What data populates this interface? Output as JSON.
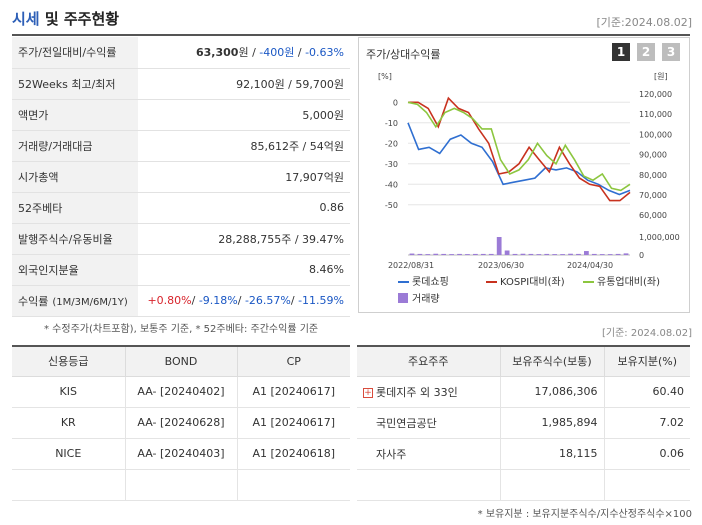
{
  "header": {
    "title_blue": "시세",
    "title_rest": " 및 주주현황",
    "date": "[기준:2024.08.02]"
  },
  "price_table": [
    {
      "key": "주가/전일대비/수익률",
      "parts": [
        {
          "t": "63,300",
          "cls": "bold"
        },
        {
          "t": "원 / ",
          "cls": ""
        },
        {
          "t": "-400원",
          "cls": "neg"
        },
        {
          "t": " / ",
          "cls": ""
        },
        {
          "t": "-0.63%",
          "cls": "neg"
        }
      ]
    },
    {
      "key": "52Weeks 최고/최저",
      "value": "92,100원 / 59,700원"
    },
    {
      "key": "액면가",
      "value": "5,000원"
    },
    {
      "key": "거래량/거래대금",
      "value": "85,612주 / 54억원"
    },
    {
      "key": "시가총액",
      "value": "17,907억원"
    },
    {
      "key": "52주베타",
      "value": "0.86"
    },
    {
      "key": "발행주식수/유동비율",
      "value": "28,288,755주 / 39.47%"
    },
    {
      "key": "외국인지분율",
      "value": "8.46%"
    },
    {
      "key": "수익률",
      "key_small": "(1M/3M/6M/1Y)",
      "parts": [
        {
          "t": "+0.80%",
          "cls": "pos"
        },
        {
          "t": "/ ",
          "cls": ""
        },
        {
          "t": "-9.18%",
          "cls": "neg"
        },
        {
          "t": "/ ",
          "cls": ""
        },
        {
          "t": "-26.57%",
          "cls": "neg"
        },
        {
          "t": "/ ",
          "cls": ""
        },
        {
          "t": "-11.59%",
          "cls": "neg"
        }
      ]
    }
  ],
  "chart_panel": {
    "title": "주가/상대수익률",
    "pages": [
      "1",
      "2",
      "3"
    ]
  },
  "chart_data": {
    "type": "line",
    "left_unit": "[%]",
    "right_unit": "[원]",
    "left_ticks": [
      0,
      -10,
      -20,
      -30,
      -40,
      -50
    ],
    "right_ticks": [
      "120,000",
      "110,000",
      "100,000",
      "90,000",
      "80,000",
      "70,000",
      "60,000"
    ],
    "volume_ticks": [
      "1,000,000",
      "0"
    ],
    "x_ticks": [
      "2022/08/31",
      "2023/06/30",
      "2024/04/30"
    ],
    "ylim": [
      -55,
      5
    ],
    "series": [
      {
        "name": "롯데쇼핑",
        "color": "#2f6fd1",
        "values": [
          -10,
          -23,
          -22,
          -25,
          -18,
          -16,
          -20,
          -22,
          -29,
          -40,
          -39,
          -38,
          -37,
          -32,
          -33,
          -32,
          -34,
          -38,
          -40,
          -43,
          -45,
          -43
        ]
      },
      {
        "name": "KOSPI대비(좌)",
        "color": "#c8321f",
        "values": [
          0,
          0,
          -3,
          -12,
          2,
          -3,
          -5,
          -13,
          -20,
          -35,
          -34,
          -30,
          -22,
          -28,
          -34,
          -22,
          -30,
          -37,
          -40,
          -41,
          -48,
          -48,
          -44
        ]
      },
      {
        "name": "유통업대비(좌)",
        "color": "#8cc63f",
        "values": [
          0,
          -1,
          -5,
          -12,
          -5,
          -3,
          -5,
          -8,
          -13,
          -13,
          -28,
          -35,
          -33,
          -28,
          -20,
          -26,
          -30,
          -21,
          -28,
          -36,
          -38,
          -35,
          -42,
          -43,
          -40
        ]
      }
    ],
    "volume": [
      0.08,
      0.06,
      0.05,
      0.07,
      0.06,
      0.05,
      0.06,
      0.05,
      0.06,
      0.06,
      0.06,
      1.0,
      0.25,
      0.06,
      0.07,
      0.06,
      0.05,
      0.06,
      0.05,
      0.05,
      0.07,
      0.06,
      0.22,
      0.06,
      0.05,
      0.05,
      0.06,
      0.09
    ],
    "volume_legend": "거래량",
    "volume_color": "#9b7bd6"
  },
  "notes": {
    "left": "* 수정주가(차트포함), 보통주 기준, * 52주베타: 주간수익률 기준",
    "right": "[기준: 2024.08.02]",
    "bottom": "* 보유지분 : 보유지분주식수/지수산정주식수×100"
  },
  "credit": {
    "headers": [
      "신용등급",
      "BOND",
      "CP"
    ],
    "rows": [
      [
        "KIS",
        "AA-  [20240402]",
        "A1  [20240617]"
      ],
      [
        "KR",
        "AA-  [20240628]",
        "A1  [20240617]"
      ],
      [
        "NICE",
        "AA-  [20240403]",
        "A1  [20240618]"
      ],
      [
        "",
        "",
        ""
      ]
    ]
  },
  "holders": {
    "headers": [
      "주요주주",
      "보유주식수(보통)",
      "보유지분(%)"
    ],
    "rows": [
      [
        "롯데지주 외 33인",
        "17,086,306",
        "60.40"
      ],
      [
        "국민연금공단",
        "1,985,894",
        "7.02"
      ],
      [
        "자사주",
        "18,115",
        "0.06"
      ],
      [
        "",
        "",
        ""
      ]
    ]
  }
}
